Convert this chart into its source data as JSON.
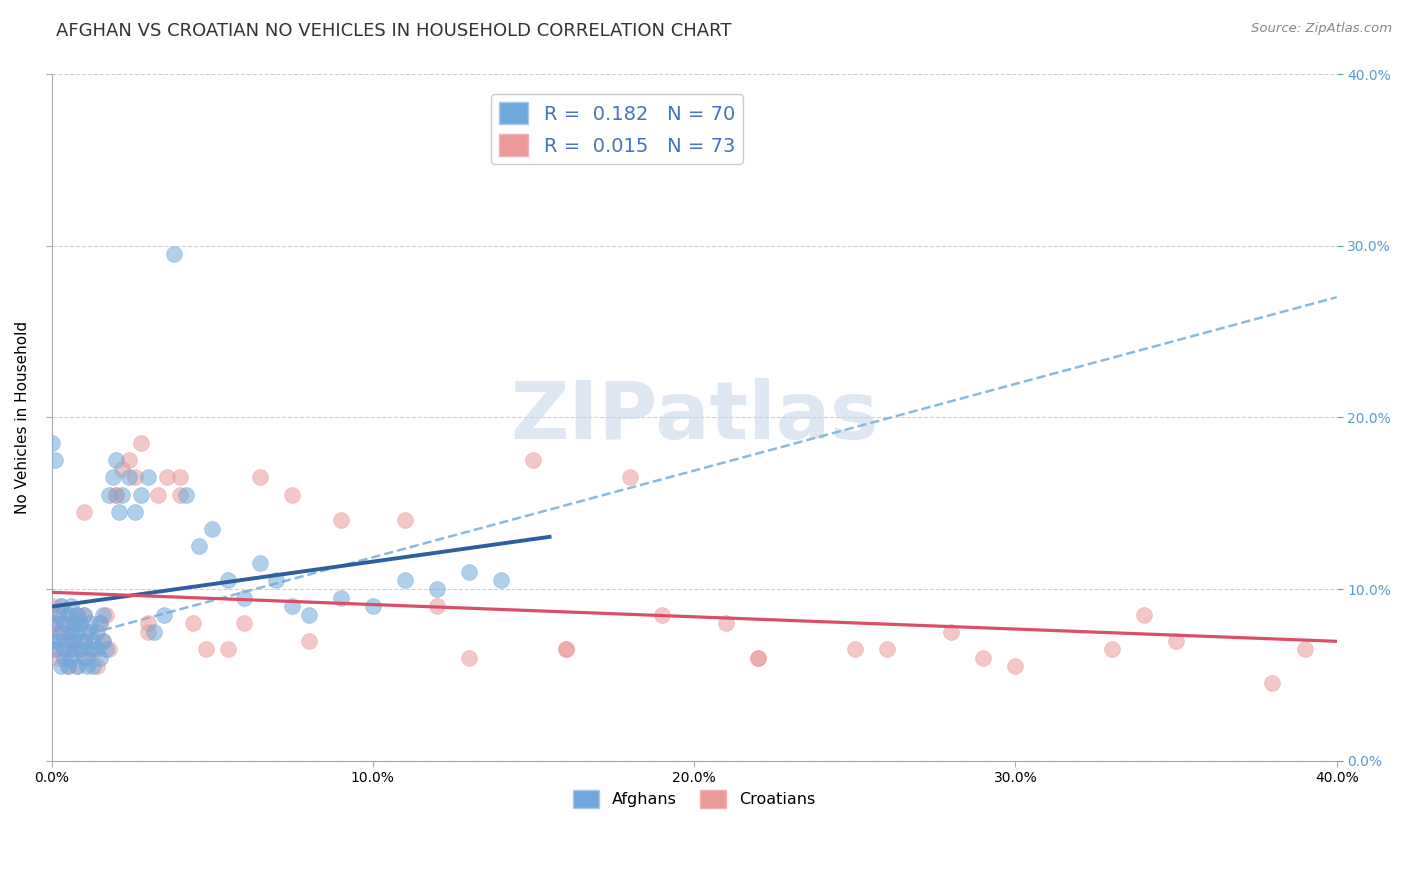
{
  "title": "AFGHAN VS CROATIAN NO VEHICLES IN HOUSEHOLD CORRELATION CHART",
  "source": "Source: ZipAtlas.com",
  "ylabel": "No Vehicles in Household",
  "xlim": [
    0.0,
    0.4
  ],
  "ylim": [
    0.0,
    0.4
  ],
  "afghan_color": "#6fa8dc",
  "croatian_color": "#ea9999",
  "afghan_line_color": "#2e5f9e",
  "croatian_line_color": "#d94f6a",
  "dashed_line_color": "#7fb3d9",
  "R_afghan": 0.182,
  "N_afghan": 70,
  "R_croatian": 0.015,
  "N_croatian": 73,
  "watermark_text": "ZIPatlas",
  "watermark_color": "#c8d8ea",
  "background_color": "#ffffff",
  "grid_color": "#cccccc",
  "right_tick_color": "#5b9bd5",
  "legend_text_color": "#4472c4",
  "title_fontsize": 13,
  "axis_label_fontsize": 11,
  "tick_fontsize": 10,
  "legend_fontsize": 14,
  "afghan_scatter_x": [
    0.0,
    0.001,
    0.001,
    0.002,
    0.002,
    0.003,
    0.003,
    0.003,
    0.004,
    0.004,
    0.004,
    0.005,
    0.005,
    0.005,
    0.006,
    0.006,
    0.006,
    0.007,
    0.007,
    0.007,
    0.008,
    0.008,
    0.008,
    0.009,
    0.009,
    0.01,
    0.01,
    0.01,
    0.011,
    0.011,
    0.012,
    0.012,
    0.013,
    0.013,
    0.014,
    0.014,
    0.015,
    0.015,
    0.016,
    0.016,
    0.017,
    0.018,
    0.019,
    0.02,
    0.021,
    0.022,
    0.024,
    0.026,
    0.028,
    0.03,
    0.032,
    0.035,
    0.038,
    0.042,
    0.046,
    0.05,
    0.055,
    0.06,
    0.065,
    0.07,
    0.075,
    0.08,
    0.09,
    0.1,
    0.11,
    0.12,
    0.13,
    0.14,
    0.0,
    0.001
  ],
  "afghan_scatter_y": [
    0.07,
    0.065,
    0.08,
    0.07,
    0.085,
    0.055,
    0.075,
    0.09,
    0.06,
    0.08,
    0.065,
    0.07,
    0.085,
    0.055,
    0.075,
    0.06,
    0.09,
    0.065,
    0.08,
    0.07,
    0.055,
    0.085,
    0.075,
    0.065,
    0.08,
    0.07,
    0.085,
    0.06,
    0.075,
    0.055,
    0.065,
    0.08,
    0.07,
    0.055,
    0.075,
    0.065,
    0.06,
    0.08,
    0.07,
    0.085,
    0.065,
    0.155,
    0.165,
    0.175,
    0.145,
    0.155,
    0.165,
    0.145,
    0.155,
    0.165,
    0.075,
    0.085,
    0.295,
    0.155,
    0.125,
    0.135,
    0.105,
    0.095,
    0.115,
    0.105,
    0.09,
    0.085,
    0.095,
    0.09,
    0.105,
    0.1,
    0.11,
    0.105,
    0.185,
    0.175
  ],
  "croatian_scatter_x": [
    0.0,
    0.0,
    0.001,
    0.001,
    0.002,
    0.002,
    0.003,
    0.003,
    0.004,
    0.004,
    0.005,
    0.005,
    0.006,
    0.006,
    0.007,
    0.007,
    0.008,
    0.008,
    0.009,
    0.009,
    0.01,
    0.01,
    0.011,
    0.012,
    0.013,
    0.014,
    0.015,
    0.016,
    0.017,
    0.018,
    0.02,
    0.022,
    0.024,
    0.026,
    0.028,
    0.03,
    0.033,
    0.036,
    0.04,
    0.044,
    0.048,
    0.055,
    0.065,
    0.075,
    0.09,
    0.11,
    0.13,
    0.16,
    0.19,
    0.22,
    0.26,
    0.3,
    0.34,
    0.38,
    0.15,
    0.18,
    0.21,
    0.25,
    0.29,
    0.33,
    0.005,
    0.01,
    0.02,
    0.03,
    0.04,
    0.06,
    0.08,
    0.12,
    0.16,
    0.22,
    0.28,
    0.35,
    0.39
  ],
  "croatian_scatter_y": [
    0.085,
    0.09,
    0.065,
    0.08,
    0.075,
    0.06,
    0.09,
    0.075,
    0.065,
    0.08,
    0.055,
    0.085,
    0.075,
    0.065,
    0.08,
    0.07,
    0.055,
    0.085,
    0.065,
    0.08,
    0.07,
    0.085,
    0.06,
    0.075,
    0.065,
    0.055,
    0.08,
    0.07,
    0.085,
    0.065,
    0.155,
    0.17,
    0.175,
    0.165,
    0.185,
    0.075,
    0.155,
    0.165,
    0.155,
    0.08,
    0.065,
    0.065,
    0.165,
    0.155,
    0.14,
    0.14,
    0.06,
    0.065,
    0.085,
    0.06,
    0.065,
    0.055,
    0.085,
    0.045,
    0.175,
    0.165,
    0.08,
    0.065,
    0.06,
    0.065,
    0.075,
    0.145,
    0.155,
    0.08,
    0.165,
    0.08,
    0.07,
    0.09,
    0.065,
    0.06,
    0.075,
    0.07,
    0.065
  ]
}
